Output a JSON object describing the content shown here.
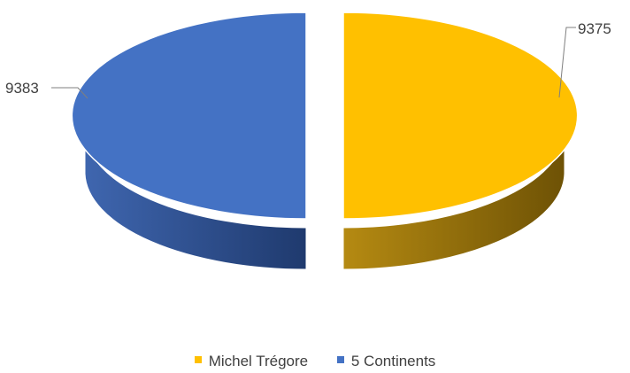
{
  "chart_data": {
    "type": "pie",
    "variant": "3d-exploded",
    "title": "",
    "slices": [
      {
        "name": "Michel Trégore",
        "value": 9375,
        "color": "#FFC000"
      },
      {
        "name": "5 Continents",
        "value": 9383,
        "color": "#4472C4"
      }
    ],
    "legend_position": "bottom",
    "data_labels": true
  }
}
